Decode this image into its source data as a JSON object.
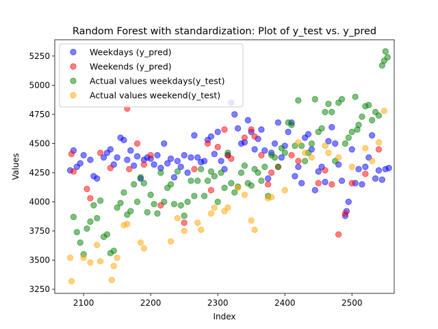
{
  "chart_data": {
    "type": "scatter",
    "title": "Random Forest with standardization: Plot of y_test vs. y_pred",
    "xlabel": "Index",
    "ylabel": "Values",
    "xlim": [
      2057,
      2563
    ],
    "ylim": [
      3215,
      5390
    ],
    "xticks": [
      2100,
      2200,
      2300,
      2400,
      2500
    ],
    "yticks": [
      3250,
      3500,
      3750,
      4000,
      4250,
      4500,
      4750,
      5000,
      5250
    ],
    "grid": false,
    "legend_position": "top-left",
    "series": [
      {
        "name": "Weekdays (y_pred)",
        "color": "#0000ff",
        "points": [
          [
            2080,
            4270
          ],
          [
            2085,
            4440
          ],
          [
            2090,
            4300
          ],
          [
            2095,
            4330
          ],
          [
            2100,
            4400
          ],
          [
            2110,
            4360
          ],
          [
            2115,
            4220
          ],
          [
            2120,
            4200
          ],
          [
            2130,
            4380
          ],
          [
            2135,
            4420
          ],
          [
            2140,
            4450
          ],
          [
            2145,
            4320
          ],
          [
            2150,
            4380
          ],
          [
            2155,
            4550
          ],
          [
            2160,
            4530
          ],
          [
            2165,
            4360
          ],
          [
            2170,
            4440
          ],
          [
            2175,
            4310
          ],
          [
            2180,
            4390
          ],
          [
            2185,
            4200
          ],
          [
            2190,
            4360
          ],
          [
            2195,
            4380
          ],
          [
            2200,
            4370
          ],
          [
            2205,
            4320
          ],
          [
            2210,
            4400
          ],
          [
            2215,
            4290
          ],
          [
            2220,
            4500
          ],
          [
            2225,
            4330
          ],
          [
            2230,
            4370
          ],
          [
            2235,
            4210
          ],
          [
            2240,
            4350
          ],
          [
            2245,
            4300
          ],
          [
            2250,
            4400
          ],
          [
            2255,
            4250
          ],
          [
            2260,
            4380
          ],
          [
            2265,
            4570
          ],
          [
            2270,
            4380
          ],
          [
            2275,
            4340
          ],
          [
            2280,
            4350
          ],
          [
            2285,
            4530
          ],
          [
            2290,
            4560
          ],
          [
            2295,
            4410
          ],
          [
            2300,
            4600
          ],
          [
            2305,
            4350
          ],
          [
            2310,
            4280
          ],
          [
            2315,
            4400
          ],
          [
            2320,
            4850
          ],
          [
            2325,
            4750
          ],
          [
            2330,
            4630
          ],
          [
            2335,
            4500
          ],
          [
            2340,
            4510
          ],
          [
            2345,
            4700
          ],
          [
            2350,
            4600
          ],
          [
            2355,
            4450
          ],
          [
            2360,
            4540
          ],
          [
            2365,
            4620
          ],
          [
            2370,
            4440
          ],
          [
            2375,
            4200
          ],
          [
            2380,
            4420
          ],
          [
            2385,
            4500
          ],
          [
            2390,
            4680
          ],
          [
            2395,
            4380
          ],
          [
            2400,
            4480
          ],
          [
            2405,
            4600
          ],
          [
            2410,
            4680
          ],
          [
            2415,
            4220
          ],
          [
            2420,
            4300
          ],
          [
            2425,
            4160
          ],
          [
            2430,
            4550
          ],
          [
            2435,
            4580
          ],
          [
            2440,
            4450
          ],
          [
            2445,
            4100
          ],
          [
            2450,
            4260
          ],
          [
            2455,
            4300
          ],
          [
            2460,
            4170
          ],
          [
            2465,
            4520
          ],
          [
            2470,
            4640
          ],
          [
            2475,
            4500
          ],
          [
            2480,
            4320
          ],
          [
            2485,
            4180
          ],
          [
            2490,
            3880
          ],
          [
            2492,
            3920
          ],
          [
            2495,
            4000
          ],
          [
            2500,
            4450
          ],
          [
            2505,
            4160
          ],
          [
            2510,
            4280
          ],
          [
            2515,
            4150
          ],
          [
            2520,
            4300
          ],
          [
            2525,
            4380
          ],
          [
            2530,
            4570
          ],
          [
            2535,
            4200
          ],
          [
            2540,
            4270
          ],
          [
            2545,
            4190
          ],
          [
            2550,
            4280
          ],
          [
            2555,
            4290
          ]
        ]
      },
      {
        "name": "Weekends (y_pred)",
        "color": "#ff0000",
        "points": [
          [
            2082,
            4410
          ],
          [
            2085,
            4260
          ],
          [
            2105,
            4110
          ],
          [
            2110,
            4030
          ],
          [
            2125,
            4420
          ],
          [
            2140,
            4290
          ],
          [
            2165,
            4800
          ],
          [
            2168,
            4280
          ],
          [
            2180,
            4500
          ],
          [
            2190,
            4320
          ],
          [
            2200,
            4400
          ],
          [
            2215,
            3970
          ],
          [
            2250,
            3820
          ],
          [
            2265,
            4280
          ],
          [
            2285,
            4500
          ],
          [
            2290,
            4100
          ],
          [
            2300,
            4470
          ],
          [
            2310,
            4620
          ],
          [
            2315,
            4400
          ],
          [
            2320,
            4370
          ],
          [
            2340,
            4550
          ],
          [
            2350,
            4620
          ],
          [
            2355,
            4560
          ],
          [
            2365,
            4400
          ],
          [
            2375,
            4150
          ],
          [
            2380,
            4250
          ],
          [
            2390,
            4300
          ],
          [
            2410,
            4400
          ],
          [
            2420,
            4350
          ],
          [
            2450,
            4160
          ],
          [
            2460,
            4270
          ],
          [
            2470,
            4150
          ],
          [
            2480,
            3720
          ],
          [
            2490,
            3900
          ],
          [
            2500,
            4160
          ],
          [
            2520,
            4240
          ],
          [
            2540,
            4450
          ]
        ]
      },
      {
        "name": "Actual values weekdays(y_test)",
        "color": "#008000",
        "points": [
          [
            2085,
            3870
          ],
          [
            2090,
            3740
          ],
          [
            2095,
            3650
          ],
          [
            2100,
            3550
          ],
          [
            2105,
            3770
          ],
          [
            2110,
            3830
          ],
          [
            2115,
            3970
          ],
          [
            2120,
            3860
          ],
          [
            2125,
            4010
          ],
          [
            2130,
            3700
          ],
          [
            2135,
            3720
          ],
          [
            2140,
            3560
          ],
          [
            2145,
            3580
          ],
          [
            2150,
            3950
          ],
          [
            2155,
            3990
          ],
          [
            2160,
            4080
          ],
          [
            2165,
            3890
          ],
          [
            2170,
            3920
          ],
          [
            2175,
            4150
          ],
          [
            2180,
            4000
          ],
          [
            2185,
            4210
          ],
          [
            2190,
            4160
          ],
          [
            2195,
            3910
          ],
          [
            2200,
            4060
          ],
          [
            2205,
            3980
          ],
          [
            2210,
            3900
          ],
          [
            2215,
            4250
          ],
          [
            2220,
            4000
          ],
          [
            2225,
            4120
          ],
          [
            2230,
            4150
          ],
          [
            2235,
            3980
          ],
          [
            2240,
            4260
          ],
          [
            2245,
            3970
          ],
          [
            2250,
            3880
          ],
          [
            2255,
            4000
          ],
          [
            2260,
            4180
          ],
          [
            2265,
            4050
          ],
          [
            2270,
            4180
          ],
          [
            2275,
            4280
          ],
          [
            2280,
            4050
          ],
          [
            2285,
            4180
          ],
          [
            2290,
            4260
          ],
          [
            2295,
            4220
          ],
          [
            2300,
            4000
          ],
          [
            2305,
            4250
          ],
          [
            2310,
            4120
          ],
          [
            2315,
            4420
          ],
          [
            2320,
            4160
          ],
          [
            2325,
            4080
          ],
          [
            2330,
            4130
          ],
          [
            2335,
            4250
          ],
          [
            2340,
            4310
          ],
          [
            2345,
            4160
          ],
          [
            2350,
            4140
          ],
          [
            2355,
            4280
          ],
          [
            2360,
            4250
          ],
          [
            2365,
            4180
          ],
          [
            2370,
            4300
          ],
          [
            2375,
            4050
          ],
          [
            2380,
            4400
          ],
          [
            2385,
            4380
          ],
          [
            2390,
            4300
          ],
          [
            2395,
            4460
          ],
          [
            2400,
            4420
          ],
          [
            2405,
            4680
          ],
          [
            2410,
            4660
          ],
          [
            2415,
            4480
          ],
          [
            2420,
            4870
          ],
          [
            2425,
            4480
          ],
          [
            2430,
            4350
          ],
          [
            2435,
            4420
          ],
          [
            2440,
            4500
          ],
          [
            2445,
            4880
          ],
          [
            2450,
            4600
          ],
          [
            2455,
            4630
          ],
          [
            2460,
            4770
          ],
          [
            2465,
            4840
          ],
          [
            2470,
            4770
          ],
          [
            2475,
            4350
          ],
          [
            2480,
            4850
          ],
          [
            2485,
            4880
          ],
          [
            2490,
            4500
          ],
          [
            2495,
            4550
          ],
          [
            2500,
            4600
          ],
          [
            2505,
            4900
          ],
          [
            2508,
            4620
          ],
          [
            2510,
            4660
          ],
          [
            2515,
            4730
          ],
          [
            2520,
            4820
          ],
          [
            2525,
            4830
          ],
          [
            2530,
            4700
          ],
          [
            2535,
            4770
          ],
          [
            2540,
            4740
          ],
          [
            2545,
            5170
          ],
          [
            2548,
            5210
          ],
          [
            2550,
            5290
          ],
          [
            2553,
            5240
          ]
        ]
      },
      {
        "name": "Actual values weekend(y_test)",
        "color": "#ffa500",
        "points": [
          [
            2080,
            3520
          ],
          [
            2082,
            3320
          ],
          [
            2100,
            3520
          ],
          [
            2110,
            3480
          ],
          [
            2120,
            3630
          ],
          [
            2125,
            3490
          ],
          [
            2142,
            3330
          ],
          [
            2145,
            3450
          ],
          [
            2150,
            3520
          ],
          [
            2160,
            3800
          ],
          [
            2165,
            3810
          ],
          [
            2185,
            3650
          ],
          [
            2190,
            3600
          ],
          [
            2230,
            3660
          ],
          [
            2240,
            3860
          ],
          [
            2250,
            3750
          ],
          [
            2270,
            3820
          ],
          [
            2275,
            3760
          ],
          [
            2290,
            3900
          ],
          [
            2295,
            3950
          ],
          [
            2310,
            3920
          ],
          [
            2315,
            3950
          ],
          [
            2330,
            4120
          ],
          [
            2340,
            4060
          ],
          [
            2350,
            3840
          ],
          [
            2355,
            3760
          ],
          [
            2375,
            4030
          ],
          [
            2380,
            4040
          ],
          [
            2400,
            4100
          ],
          [
            2420,
            4510
          ],
          [
            2430,
            4420
          ],
          [
            2440,
            4380
          ],
          [
            2460,
            4480
          ],
          [
            2465,
            4420
          ],
          [
            2480,
            4380
          ],
          [
            2500,
            4300
          ],
          [
            2520,
            4460
          ],
          [
            2530,
            4350
          ],
          [
            2540,
            4510
          ],
          [
            2548,
            4780
          ]
        ]
      }
    ]
  }
}
